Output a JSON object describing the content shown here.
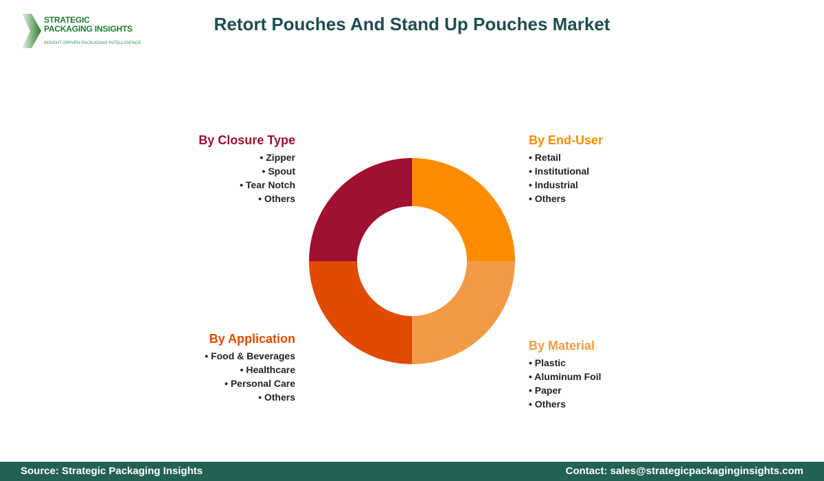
{
  "logo": {
    "line1": "STRATEGIC",
    "line2": "PACKAGING INSIGHTS",
    "tagline": "INSIGHT-DRIVEN PACKAGING INTELLIGENCE"
  },
  "title": "Retort Pouches And Stand Up Pouches Market",
  "segments": [
    {
      "title": "By End-User",
      "color": "#FF8C00",
      "items": [
        "Retail",
        "Institutional",
        "Industrial",
        "Others"
      ]
    },
    {
      "title": "By Material",
      "color": "#F39A45",
      "items": [
        "Plastic",
        "Aluminum Foil",
        "Paper",
        "Others"
      ]
    },
    {
      "title": "By Application",
      "color": "#E04B00",
      "items": [
        "Food & Beverages",
        "Healthcare",
        "Personal Care",
        "Others"
      ]
    },
    {
      "title": "By Closure Type",
      "color": "#A01030",
      "items": [
        "Zipper",
        "Spout",
        "Tear Notch",
        "Others"
      ]
    }
  ],
  "footer": {
    "source": "Source: Strategic Packaging Insights",
    "contact": "Contact: sales@strategicpackaginginsights.com"
  }
}
